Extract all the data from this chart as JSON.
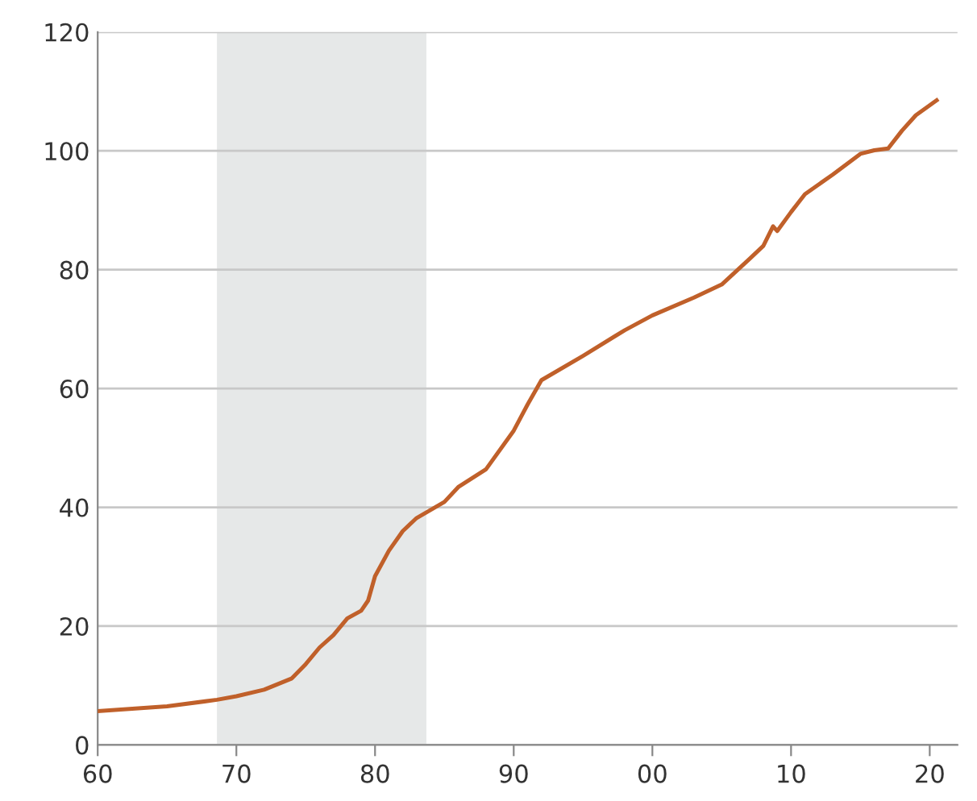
{
  "chart_data": {
    "type": "line",
    "x": [
      1960,
      1965,
      1968.6,
      1970,
      1972,
      1974,
      1975,
      1976,
      1977,
      1978,
      1979,
      1979.5,
      1980,
      1981,
      1982,
      1983,
      1985,
      1986,
      1988,
      1990,
      1991,
      1992,
      1995,
      1998,
      2000,
      2003,
      2005,
      2007,
      2008,
      2008.7,
      2009,
      2010,
      2011,
      2013,
      2015,
      2016,
      2017,
      2018,
      2019,
      2020.5
    ],
    "series": [
      {
        "color": "#c0602a",
        "values": [
          5.7,
          6.5,
          7.6,
          8.2,
          9.3,
          11.2,
          13.6,
          16.4,
          18.5,
          21.3,
          22.6,
          24.3,
          28.4,
          32.7,
          36,
          38.2,
          40.9,
          43.4,
          46.4,
          52.9,
          57.3,
          61.4,
          65.5,
          69.8,
          72.3,
          75.3,
          77.5,
          81.8,
          84,
          87.3,
          86.5,
          89.7,
          92.7,
          96,
          99.5,
          100.1,
          100.4,
          103.4,
          106,
          108.5
        ]
      }
    ],
    "xlim": [
      1960,
      2022
    ],
    "xticks": [
      {
        "value": 1960,
        "label": "60"
      },
      {
        "value": 1970,
        "label": "70"
      },
      {
        "value": 1980,
        "label": "80"
      },
      {
        "value": 1990,
        "label": "90"
      },
      {
        "value": 2000,
        "label": "00"
      },
      {
        "value": 2010,
        "label": "10"
      },
      {
        "value": 2020,
        "label": "20"
      }
    ],
    "ylim": [
      0,
      120
    ],
    "yticks": [
      0,
      20,
      40,
      60,
      80,
      100,
      120
    ],
    "bands": [
      {
        "axis": "x",
        "from": 1968.6,
        "to": 1983.7,
        "color": "#e6e8e8"
      }
    ],
    "grid": "y",
    "marker": "none",
    "line_style": "solid"
  }
}
